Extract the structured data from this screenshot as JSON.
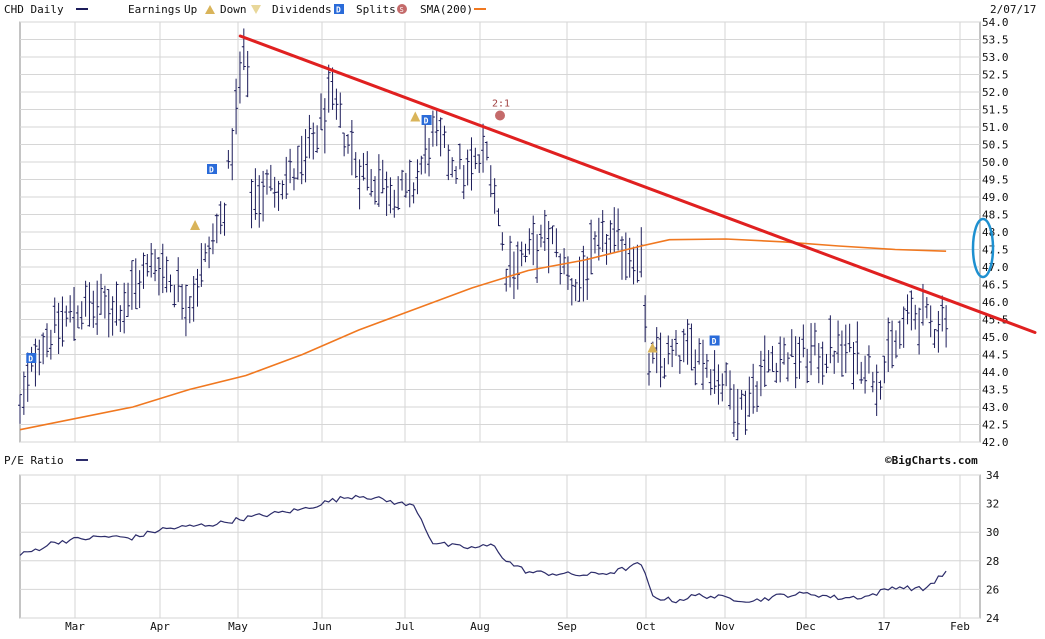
{
  "header": {
    "symbol_label": "CHD Daily",
    "earnings_label": "Earnings",
    "up_label": "Up",
    "down_label": "Down",
    "dividends_label": "Dividends",
    "splits_label": "Splits",
    "sma_label": "SMA(200)",
    "date_label": "2/07/17"
  },
  "lower_header": {
    "pe_label": "P/E Ratio",
    "brand_label": "©BigCharts.com"
  },
  "colors": {
    "bars": "#1c1c5a",
    "sma": "#f07820",
    "trendline": "#e02020",
    "highlight_ellipse": "#1e90d0",
    "grid": "#d6d6d6",
    "dividend_marker": "#2a6bd9",
    "earnings_marker": "#d9b45a",
    "split_marker": "#c46a6a",
    "pe_line": "#2c2c6a"
  },
  "chart_data": [
    {
      "type": "ohlc",
      "symbol": "CHD",
      "x_labels": [
        "Mar",
        "Apr",
        "May",
        "Jun",
        "Jul",
        "Aug",
        "Sep",
        "Oct",
        "Nov",
        "Dec",
        "17",
        "Feb"
      ],
      "y_ticks": [
        42.0,
        42.5,
        43.0,
        43.5,
        44.0,
        44.5,
        45.0,
        45.5,
        46.0,
        46.5,
        47.0,
        47.5,
        48.0,
        48.5,
        49.0,
        49.5,
        50.0,
        50.5,
        51.0,
        51.5,
        52.0,
        52.5,
        53.0,
        53.5,
        54.0
      ],
      "ylim": [
        42.0,
        54.0
      ],
      "grid": true,
      "price_path_month_close": [
        {
          "x": 0.0,
          "y": 42.8
        },
        {
          "x": 0.3,
          "y": 44.7
        },
        {
          "x": 1.0,
          "y": 45.8
        },
        {
          "x": 1.8,
          "y": 45.9
        },
        {
          "x": 2.4,
          "y": 47.2
        },
        {
          "x": 3.0,
          "y": 46.0
        },
        {
          "x": 3.6,
          "y": 48.5
        },
        {
          "x": 4.0,
          "y": 53.6
        },
        {
          "x": 4.1,
          "y": 49.0
        },
        {
          "x": 5.0,
          "y": 49.8
        },
        {
          "x": 5.5,
          "y": 51.8
        },
        {
          "x": 6.0,
          "y": 49.8
        },
        {
          "x": 6.9,
          "y": 49.0
        },
        {
          "x": 7.3,
          "y": 50.7
        },
        {
          "x": 7.9,
          "y": 49.6
        },
        {
          "x": 8.3,
          "y": 50.3
        },
        {
          "x": 8.6,
          "y": 47.0
        },
        {
          "x": 9.4,
          "y": 47.8
        },
        {
          "x": 9.8,
          "y": 46.4
        },
        {
          "x": 10.4,
          "y": 47.8
        },
        {
          "x": 11.0,
          "y": 47.3
        },
        {
          "x": 11.1,
          "y": 44.2
        },
        {
          "x": 12.0,
          "y": 44.6
        },
        {
          "x": 12.8,
          "y": 43.0
        },
        {
          "x": 13.3,
          "y": 44.4
        },
        {
          "x": 14.0,
          "y": 44.5
        },
        {
          "x": 14.8,
          "y": 44.6
        },
        {
          "x": 15.2,
          "y": 43.8
        },
        {
          "x": 15.8,
          "y": 45.7
        },
        {
          "x": 16.2,
          "y": 45.3
        },
        {
          "x": 16.4,
          "y": 45.7
        }
      ],
      "sma200": [
        {
          "x": 0.0,
          "y": 42.35
        },
        {
          "x": 2.0,
          "y": 43.0
        },
        {
          "x": 3.0,
          "y": 43.5
        },
        {
          "x": 4.0,
          "y": 43.9
        },
        {
          "x": 5.0,
          "y": 44.5
        },
        {
          "x": 6.0,
          "y": 45.2
        },
        {
          "x": 7.0,
          "y": 45.8
        },
        {
          "x": 8.0,
          "y": 46.4
        },
        {
          "x": 9.0,
          "y": 46.9
        },
        {
          "x": 10.0,
          "y": 47.2
        },
        {
          "x": 11.0,
          "y": 47.6
        },
        {
          "x": 11.5,
          "y": 47.78
        },
        {
          "x": 12.5,
          "y": 47.8
        },
        {
          "x": 13.5,
          "y": 47.72
        },
        {
          "x": 14.5,
          "y": 47.6
        },
        {
          "x": 15.5,
          "y": 47.5
        },
        {
          "x": 16.4,
          "y": 47.45
        }
      ],
      "trendline": {
        "start": {
          "x": 3.9,
          "y": 53.6
        },
        "end": {
          "x": 17.0,
          "y": 45.7
        }
      },
      "events": [
        {
          "kind": "dividend",
          "x": 0.2,
          "y": 44.4
        },
        {
          "kind": "dividend",
          "x": 3.4,
          "y": 49.8
        },
        {
          "kind": "dividend",
          "x": 7.2,
          "y": 51.2
        },
        {
          "kind": "dividend",
          "x": 12.3,
          "y": 44.9
        },
        {
          "kind": "earnings",
          "x": 3.1,
          "y": 48.2
        },
        {
          "kind": "earnings",
          "x": 7.0,
          "y": 51.3
        },
        {
          "kind": "earnings",
          "x": 11.2,
          "y": 44.7
        },
        {
          "kind": "split",
          "x": 8.5,
          "y": 51.5,
          "label": "2:1"
        }
      ]
    },
    {
      "type": "line",
      "name": "P/E Ratio",
      "x_labels": [
        "Mar",
        "Apr",
        "May",
        "Jun",
        "Jul",
        "Aug",
        "Sep",
        "Oct",
        "Nov",
        "Dec",
        "17",
        "Feb"
      ],
      "y_ticks": [
        24,
        26,
        28,
        30,
        32,
        34
      ],
      "ylim": [
        24,
        34
      ],
      "grid": true,
      "points": [
        {
          "x": 0.0,
          "y": 28.4
        },
        {
          "x": 0.3,
          "y": 28.8
        },
        {
          "x": 0.6,
          "y": 29.3
        },
        {
          "x": 1.0,
          "y": 29.5
        },
        {
          "x": 1.5,
          "y": 29.7
        },
        {
          "x": 2.0,
          "y": 29.6
        },
        {
          "x": 2.5,
          "y": 30.2
        },
        {
          "x": 3.0,
          "y": 30.4
        },
        {
          "x": 3.5,
          "y": 30.6
        },
        {
          "x": 4.0,
          "y": 31.0
        },
        {
          "x": 4.5,
          "y": 31.3
        },
        {
          "x": 5.0,
          "y": 31.6
        },
        {
          "x": 5.5,
          "y": 32.2
        },
        {
          "x": 6.0,
          "y": 32.6
        },
        {
          "x": 6.5,
          "y": 32.2
        },
        {
          "x": 7.0,
          "y": 31.8
        },
        {
          "x": 7.3,
          "y": 29.3
        },
        {
          "x": 7.7,
          "y": 29.0
        },
        {
          "x": 8.0,
          "y": 28.9
        },
        {
          "x": 8.4,
          "y": 29.1
        },
        {
          "x": 8.6,
          "y": 28.0
        },
        {
          "x": 9.0,
          "y": 27.2
        },
        {
          "x": 9.5,
          "y": 27.1
        },
        {
          "x": 10.0,
          "y": 27.0
        },
        {
          "x": 10.5,
          "y": 27.2
        },
        {
          "x": 11.0,
          "y": 27.8
        },
        {
          "x": 11.2,
          "y": 25.5
        },
        {
          "x": 11.6,
          "y": 25.2
        },
        {
          "x": 12.0,
          "y": 25.6
        },
        {
          "x": 12.5,
          "y": 25.4
        },
        {
          "x": 13.0,
          "y": 25.2
        },
        {
          "x": 13.5,
          "y": 25.6
        },
        {
          "x": 14.0,
          "y": 25.7
        },
        {
          "x": 14.5,
          "y": 25.4
        },
        {
          "x": 15.0,
          "y": 25.5
        },
        {
          "x": 15.5,
          "y": 26.2
        },
        {
          "x": 16.0,
          "y": 26.0
        },
        {
          "x": 16.4,
          "y": 27.2
        }
      ]
    }
  ]
}
